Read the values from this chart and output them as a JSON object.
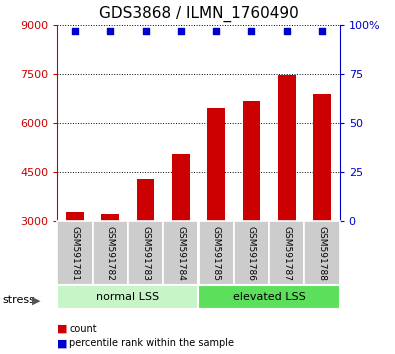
{
  "title": "GDS3868 / ILMN_1760490",
  "categories": [
    "GSM591781",
    "GSM591782",
    "GSM591783",
    "GSM591784",
    "GSM591785",
    "GSM591786",
    "GSM591787",
    "GSM591788"
  ],
  "bar_values": [
    3280,
    3210,
    4280,
    5050,
    6450,
    6680,
    7480,
    6900
  ],
  "percentile_values": [
    97,
    97,
    97,
    97,
    97,
    97,
    97,
    97
  ],
  "bar_color": "#cc0000",
  "percentile_color": "#0000cc",
  "ylim_left": [
    3000,
    9000
  ],
  "ylim_right": [
    0,
    100
  ],
  "yticks_left": [
    3000,
    4500,
    6000,
    7500,
    9000
  ],
  "yticks_right": [
    0,
    25,
    50,
    75,
    100
  ],
  "group_labels": [
    "normal LSS",
    "elevated LSS"
  ],
  "group_colors": [
    "#c8f5c8",
    "#5ce05c"
  ],
  "stress_label": "stress",
  "legend_items": [
    {
      "label": "count",
      "color": "#cc0000"
    },
    {
      "label": "percentile rank within the sample",
      "color": "#0000cc"
    }
  ],
  "bar_width": 0.5,
  "title_fontsize": 11,
  "tick_fontsize": 8,
  "label_fontsize": 8,
  "group_fontsize": 8
}
